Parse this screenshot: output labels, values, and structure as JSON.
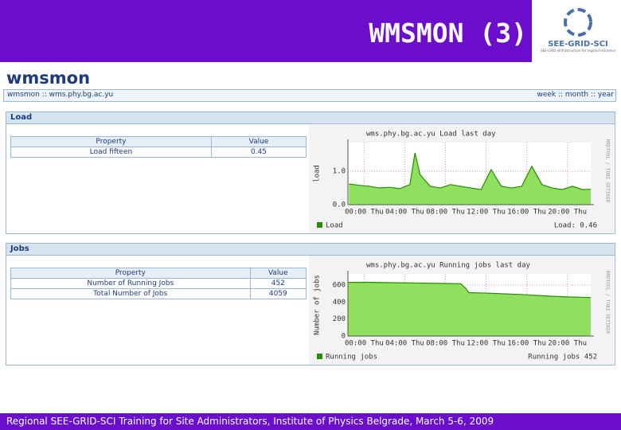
{
  "slide": {
    "title": "WMSMON (3)",
    "logo_text": "SEE-GRID-SCI",
    "logo_subtitle": "SEE-GRID eInfrastructure for regional eScience",
    "footer": "Regional SEE-GRID-SCI Training for Site Administrators, Institute of Physics Belgrade, March 5-6, 2009"
  },
  "app": {
    "brand": "wmsmon",
    "breadcrumb": "wmsmon :: wms.phy.bg.ac.yu",
    "periods": "week :: month :: year"
  },
  "panels": [
    {
      "title": "Load",
      "table": {
        "headers": [
          "Property",
          "Value"
        ],
        "rows": [
          [
            "Load fifteen",
            "0.45"
          ]
        ]
      },
      "chart": {
        "type": "area",
        "title": "wms.phy.bg.ac.yu Load last day",
        "y_label": "load",
        "credit": "RRDTOOL / TOBI OETIKER",
        "x": [
          -1.5,
          -0.5,
          0.5,
          1.5,
          2.5,
          3.5,
          4.5,
          5,
          5.5,
          6.5,
          7.5,
          8.5,
          9.5,
          10.5,
          11.5,
          12.5,
          13.5,
          14.5,
          15.5,
          16.5,
          17.5,
          18.5,
          19.5,
          20.5,
          21.5,
          22.3
        ],
        "series": [
          {
            "name": "Load",
            "color": "#2a8a00",
            "values": [
              0.62,
              0.58,
              0.55,
              0.5,
              0.52,
              0.48,
              0.6,
              1.55,
              0.9,
              0.55,
              0.5,
              0.6,
              0.55,
              0.5,
              0.45,
              1.05,
              0.55,
              0.5,
              0.55,
              1.15,
              0.6,
              0.5,
              0.45,
              0.55,
              0.45,
              0.46
            ]
          }
        ],
        "current_label": "Load: 0.46",
        "xlim": [
          -1.6,
          22.3
        ],
        "xticks": [
          {
            "value": 0,
            "label": "00:00 Thu"
          },
          {
            "value": 4,
            "label": "04:00 Thu"
          },
          {
            "value": 8,
            "label": "08:00 Thu"
          },
          {
            "value": 12,
            "label": "12:00 Thu"
          },
          {
            "value": 16,
            "label": "16:00 Thu"
          },
          {
            "value": 20,
            "label": "20:00 Thu"
          }
        ],
        "ylim": [
          0,
          1.86
        ],
        "yticks": [
          {
            "value": 0,
            "label": "0.0"
          },
          {
            "value": 1,
            "label": "1.0"
          }
        ],
        "grid": true
      }
    },
    {
      "title": "Jobs",
      "table": {
        "headers": [
          "Property",
          "Value"
        ],
        "rows": [
          [
            "Number of Running Jobs",
            "452"
          ],
          [
            "Total Number of Jobs",
            "4059"
          ]
        ]
      },
      "chart": {
        "type": "area",
        "title": "wms.phy.bg.ac.yu Running jobs last day",
        "y_label": "Number of jobs",
        "credit": "RRDTOOL / TOBI OETIKER",
        "x": [
          -1.6,
          0,
          2,
          4,
          6,
          8,
          9.5,
          10,
          10.3,
          12,
          14,
          16,
          18,
          20,
          22.3
        ],
        "series": [
          {
            "name": "Running jobs",
            "color": "#2a8a00",
            "values": [
              630,
              632,
              628,
              625,
              622,
              618,
              615,
              560,
              510,
              505,
              495,
              485,
              470,
              460,
              452
            ]
          }
        ],
        "current_label": "Running jobs 452",
        "xlim": [
          -1.6,
          22.3
        ],
        "xticks": [
          {
            "value": 0,
            "label": "00:00 Thu"
          },
          {
            "value": 4,
            "label": "04:00 Thu"
          },
          {
            "value": 8,
            "label": "08:00 Thu"
          },
          {
            "value": 12,
            "label": "12:00 Thu"
          },
          {
            "value": 16,
            "label": "16:00 Thu"
          },
          {
            "value": 20,
            "label": "20:00 Thu"
          }
        ],
        "ylim": [
          0,
          730
        ],
        "yticks": [
          0,
          200,
          400,
          600
        ],
        "grid": true
      }
    }
  ]
}
